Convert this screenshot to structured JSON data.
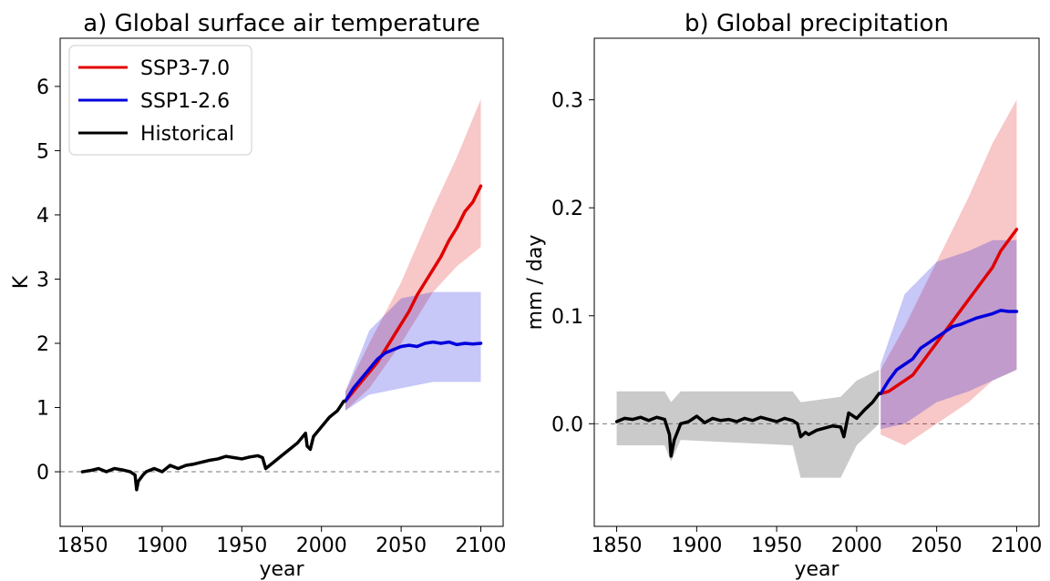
{
  "chart_data": [
    {
      "type": "line",
      "title": "a) Global surface air temperature",
      "xlabel": "year",
      "ylabel": "K",
      "xlim": [
        1836,
        2114
      ],
      "ylim": [
        -0.85,
        6.75
      ],
      "xticks": [
        1850,
        1900,
        1950,
        2000,
        2050,
        2100
      ],
      "yticks": [
        0,
        1,
        2,
        3,
        4,
        5,
        6
      ],
      "reference_line": 0,
      "legend": {
        "position": "top-left",
        "entries": [
          {
            "label": "SSP3-7.0",
            "color": "#e00000"
          },
          {
            "label": "SSP1-2.6",
            "color": "#0000dd"
          },
          {
            "label": "Historical",
            "color": "#000000"
          }
        ]
      },
      "series": [
        {
          "name": "Historical",
          "color": "#000000",
          "x": [
            1850,
            1855,
            1860,
            1865,
            1870,
            1875,
            1880,
            1883,
            1884,
            1885,
            1888,
            1890,
            1895,
            1900,
            1905,
            1910,
            1915,
            1920,
            1925,
            1930,
            1935,
            1940,
            1945,
            1950,
            1955,
            1960,
            1963,
            1965,
            1970,
            1975,
            1980,
            1985,
            1990,
            1991,
            1993,
            1995,
            2000,
            2005,
            2010,
            2014
          ],
          "y": [
            0.0,
            0.02,
            0.05,
            0.0,
            0.05,
            0.03,
            0.0,
            -0.05,
            -0.28,
            -0.15,
            -0.05,
            0.0,
            0.05,
            0.0,
            0.1,
            0.05,
            0.1,
            0.12,
            0.15,
            0.18,
            0.2,
            0.24,
            0.22,
            0.2,
            0.23,
            0.25,
            0.22,
            0.05,
            0.15,
            0.25,
            0.35,
            0.45,
            0.6,
            0.4,
            0.35,
            0.55,
            0.7,
            0.85,
            0.95,
            1.1
          ]
        },
        {
          "name": "SSP3-7.0",
          "color": "#e00000",
          "band": [
            [
              2015,
              0.95,
              1.25
            ],
            [
              2030,
              1.3,
              2.0
            ],
            [
              2050,
              2.0,
              2.95
            ],
            [
              2070,
              2.8,
              4.1
            ],
            [
              2085,
              3.2,
              4.9
            ],
            [
              2100,
              3.5,
              5.8
            ]
          ],
          "x": [
            2015,
            2020,
            2025,
            2030,
            2035,
            2040,
            2045,
            2050,
            2055,
            2060,
            2065,
            2070,
            2075,
            2080,
            2085,
            2090,
            2095,
            2100
          ],
          "y": [
            1.1,
            1.25,
            1.4,
            1.55,
            1.7,
            1.9,
            2.1,
            2.3,
            2.5,
            2.75,
            2.95,
            3.15,
            3.35,
            3.6,
            3.8,
            4.05,
            4.2,
            4.45
          ]
        },
        {
          "name": "SSP1-2.6",
          "color": "#0000dd",
          "band": [
            [
              2015,
              0.95,
              1.25
            ],
            [
              2030,
              1.2,
              2.2
            ],
            [
              2050,
              1.3,
              2.7
            ],
            [
              2070,
              1.4,
              2.8
            ],
            [
              2085,
              1.4,
              2.8
            ],
            [
              2100,
              1.4,
              2.8
            ]
          ],
          "x": [
            2015,
            2020,
            2025,
            2030,
            2035,
            2040,
            2045,
            2050,
            2055,
            2060,
            2065,
            2070,
            2075,
            2080,
            2085,
            2090,
            2095,
            2100
          ],
          "y": [
            1.1,
            1.3,
            1.45,
            1.6,
            1.75,
            1.85,
            1.9,
            1.95,
            1.97,
            1.95,
            2.0,
            2.02,
            2.0,
            2.02,
            1.98,
            2.0,
            1.99,
            2.0
          ]
        }
      ]
    },
    {
      "type": "line",
      "title": "b) Global precipitation",
      "xlabel": "year",
      "ylabel": "mm / day",
      "xlim": [
        1836,
        2114
      ],
      "ylim": [
        -0.095,
        0.357
      ],
      "xticks": [
        1850,
        1900,
        1950,
        2000,
        2050,
        2100
      ],
      "yticks": [
        0.0,
        0.1,
        0.2,
        0.3
      ],
      "reference_line": 0,
      "series": [
        {
          "name": "Historical",
          "color": "#000000",
          "band": [
            [
              1850,
              -0.02,
              0.03
            ],
            [
              1880,
              -0.02,
              0.03
            ],
            [
              1884,
              -0.035,
              0.02
            ],
            [
              1890,
              -0.015,
              0.03
            ],
            [
              1960,
              -0.02,
              0.03
            ],
            [
              1965,
              -0.05,
              0.02
            ],
            [
              1990,
              -0.05,
              0.025
            ],
            [
              2000,
              -0.02,
              0.04
            ],
            [
              2014,
              -0.0,
              0.05
            ]
          ],
          "x": [
            1850,
            1855,
            1860,
            1865,
            1870,
            1875,
            1880,
            1883,
            1884,
            1886,
            1890,
            1895,
            1900,
            1905,
            1910,
            1915,
            1920,
            1925,
            1930,
            1935,
            1940,
            1945,
            1950,
            1955,
            1960,
            1963,
            1965,
            1968,
            1970,
            1975,
            1980,
            1985,
            1990,
            1992,
            1995,
            2000,
            2005,
            2010,
            2014
          ],
          "y": [
            0.002,
            0.005,
            0.004,
            0.006,
            0.003,
            0.006,
            0.004,
            -0.01,
            -0.03,
            -0.015,
            0.0,
            0.002,
            0.007,
            0.001,
            0.005,
            0.003,
            0.004,
            0.002,
            0.005,
            0.003,
            0.006,
            0.004,
            0.002,
            0.005,
            0.003,
            0.0,
            -0.012,
            -0.008,
            -0.01,
            -0.006,
            -0.004,
            -0.002,
            -0.003,
            -0.012,
            0.01,
            0.005,
            0.013,
            0.02,
            0.028
          ]
        },
        {
          "name": "SSP3-7.0",
          "color": "#e00000",
          "band": [
            [
              2015,
              -0.01,
              0.05
            ],
            [
              2030,
              -0.02,
              0.09
            ],
            [
              2050,
              0.0,
              0.15
            ],
            [
              2070,
              0.02,
              0.21
            ],
            [
              2085,
              0.04,
              0.26
            ],
            [
              2100,
              0.05,
              0.3
            ]
          ],
          "x": [
            2015,
            2020,
            2025,
            2030,
            2035,
            2040,
            2045,
            2050,
            2055,
            2060,
            2065,
            2070,
            2075,
            2080,
            2085,
            2090,
            2095,
            2100
          ],
          "y": [
            0.028,
            0.03,
            0.035,
            0.04,
            0.045,
            0.055,
            0.065,
            0.075,
            0.085,
            0.095,
            0.105,
            0.115,
            0.125,
            0.135,
            0.145,
            0.16,
            0.17,
            0.18
          ]
        },
        {
          "name": "SSP1-2.6",
          "color": "#0000dd",
          "band": [
            [
              2015,
              -0.005,
              0.055
            ],
            [
              2030,
              0.0,
              0.12
            ],
            [
              2050,
              0.02,
              0.15
            ],
            [
              2070,
              0.03,
              0.16
            ],
            [
              2085,
              0.04,
              0.17
            ],
            [
              2100,
              0.05,
              0.17
            ]
          ],
          "x": [
            2015,
            2020,
            2025,
            2030,
            2035,
            2040,
            2045,
            2050,
            2055,
            2060,
            2065,
            2070,
            2075,
            2080,
            2085,
            2090,
            2095,
            2100
          ],
          "y": [
            0.028,
            0.04,
            0.05,
            0.055,
            0.06,
            0.07,
            0.075,
            0.08,
            0.085,
            0.09,
            0.092,
            0.095,
            0.098,
            0.1,
            0.102,
            0.105,
            0.104,
            0.104
          ]
        }
      ]
    }
  ]
}
